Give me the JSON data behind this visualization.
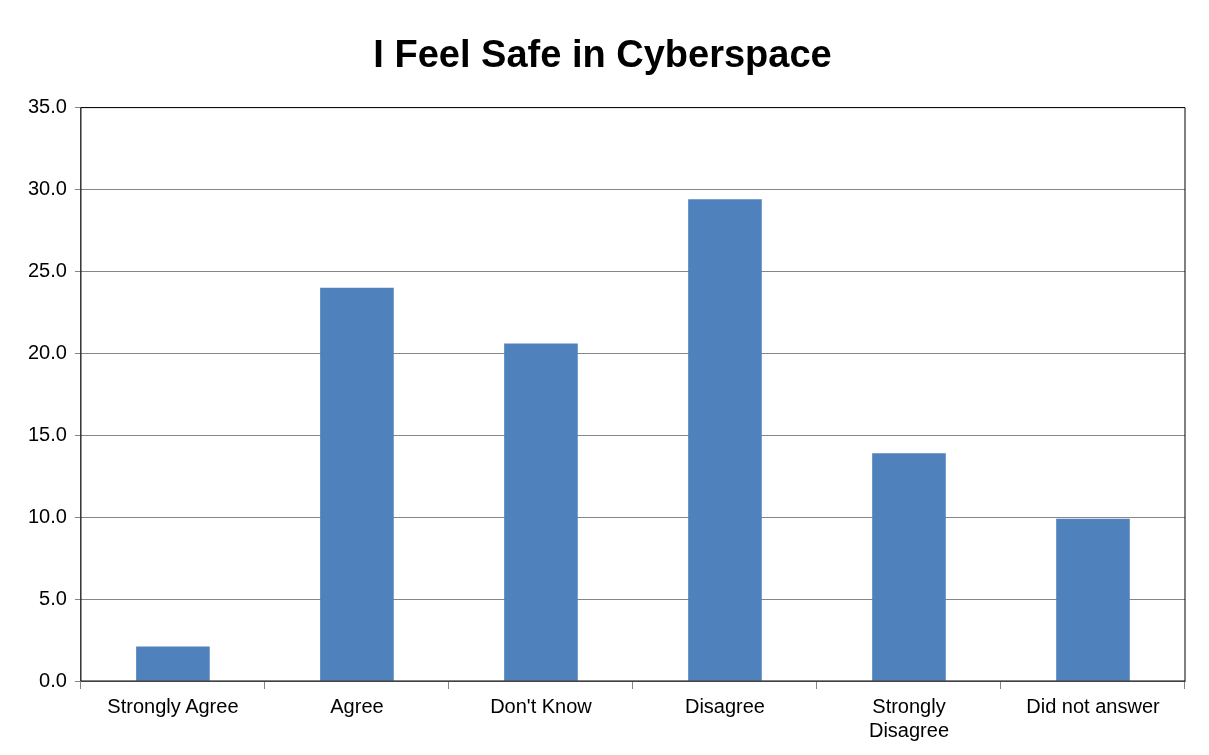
{
  "chart_data": {
    "type": "bar",
    "title": "I Feel Safe in Cyberspace",
    "categories": [
      "Strongly Agree",
      "Agree",
      "Don't Know",
      "Disagree",
      "Strongly Disagree",
      "Did not answer"
    ],
    "values": [
      2.1,
      24.0,
      20.6,
      29.4,
      13.9,
      9.9
    ],
    "color": "#4f81bd",
    "ylim": [
      0,
      35
    ],
    "yticks": [
      {
        "value": 0,
        "label": "0.0"
      },
      {
        "value": 5,
        "label": "5.0"
      },
      {
        "value": 10,
        "label": "10.0"
      },
      {
        "value": 15,
        "label": "15.0"
      },
      {
        "value": 20,
        "label": "20.0"
      },
      {
        "value": 25,
        "label": "25.0"
      },
      {
        "value": 30,
        "label": "30.0"
      },
      {
        "value": 35,
        "label": "35.0"
      }
    ],
    "grid": "y",
    "legend": false
  }
}
